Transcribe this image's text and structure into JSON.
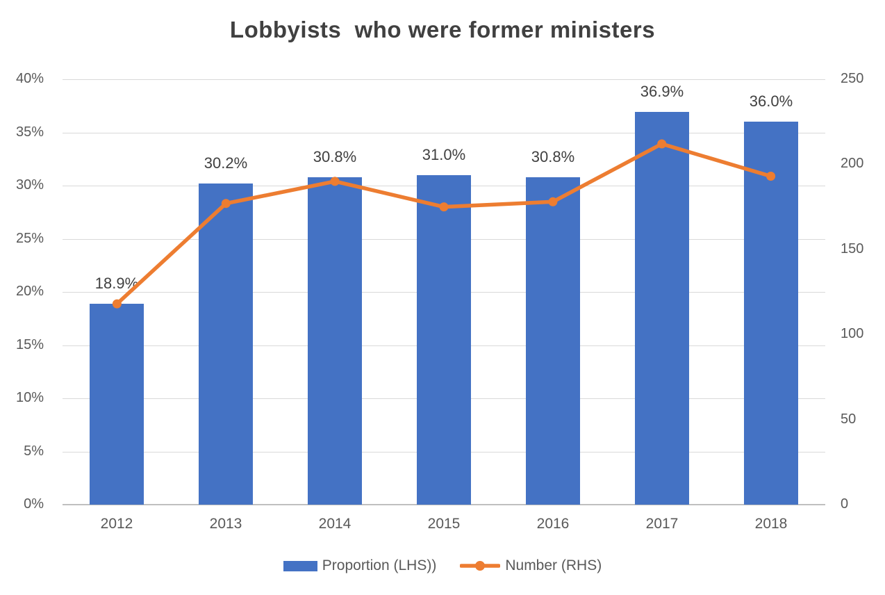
{
  "chart": {
    "title": "Lobbyists  who were former ministers",
    "colors": {
      "bar": "#4472C4",
      "line": "#ED7D31",
      "title_text": "#404040",
      "axis_text": "#595959",
      "data_label_text": "#404040",
      "gridline": "#D9D9D9",
      "axis_line": "#BFBFBF",
      "background": "#FFFFFF"
    }
  },
  "chart_data": {
    "type": "bar",
    "subtype": "combo-bar-line-dual-axis",
    "title": "Lobbyists  who were former ministers",
    "categories": [
      "2012",
      "2013",
      "2014",
      "2015",
      "2016",
      "2017",
      "2018"
    ],
    "series": [
      {
        "name": "Proportion (LHS))",
        "type": "bar",
        "axis": "left",
        "values": [
          18.9,
          30.2,
          30.8,
          31.0,
          30.8,
          36.9,
          36.0
        ],
        "data_labels": [
          "18.9%",
          "30.2%",
          "30.8%",
          "31.0%",
          "30.8%",
          "36.9%",
          "36.0%"
        ]
      },
      {
        "name": "Number (RHS)",
        "type": "line",
        "axis": "right",
        "values": [
          118,
          177,
          190,
          175,
          178,
          212,
          193
        ],
        "marker": "circle"
      }
    ],
    "left_axis": {
      "min": 0,
      "max": 40,
      "tick_values": [
        0,
        5,
        10,
        15,
        20,
        25,
        30,
        35,
        40
      ],
      "tick_labels": [
        "0%",
        "5%",
        "10%",
        "15%",
        "20%",
        "25%",
        "30%",
        "35%",
        "40%"
      ]
    },
    "right_axis": {
      "min": 0,
      "max": 250,
      "tick_values": [
        0,
        50,
        100,
        150,
        200,
        250
      ],
      "tick_labels": [
        "0",
        "50",
        "100",
        "150",
        "200",
        "250"
      ]
    },
    "legend": [
      {
        "label": "Proportion (LHS))",
        "swatch": "bar"
      },
      {
        "label": "Number (RHS)",
        "swatch": "line"
      }
    ],
    "grid": "horizontal",
    "legend_position": "bottom"
  }
}
